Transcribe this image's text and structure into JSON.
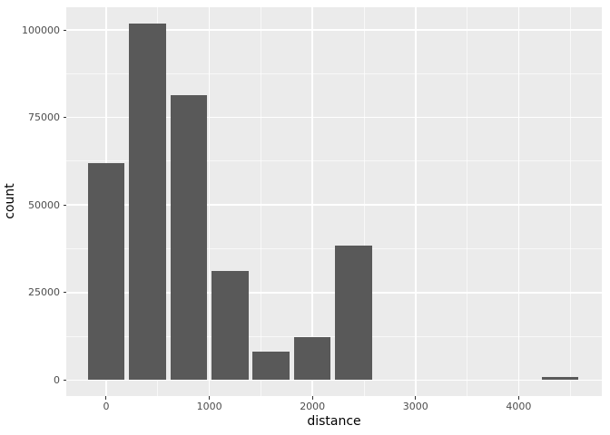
{
  "figure": {
    "background": "#FFFFFF"
  },
  "chart_data": {
    "type": "bar",
    "subtype": "histogram",
    "title": "",
    "xlabel": "distance",
    "ylabel": "count",
    "legend": "none",
    "grid": "on",
    "colors": {
      "bar_fill": "#595959",
      "panel_bg": "#EBEBEB",
      "grid_major": "#FFFFFF",
      "grid_minor": "#FFFFFF",
      "axis_text": "#4D4D4D",
      "axis_title": "#000000",
      "tick_mark": "#333333",
      "outer_bg": "#FFFFFF"
    },
    "x_axis": {
      "label": "distance",
      "tick_values": [
        0,
        1000,
        2000,
        3000,
        4000
      ],
      "tick_labels": [
        "0",
        "1000",
        "2000",
        "3000",
        "4000"
      ],
      "minor_tick_values": [
        500,
        1500,
        2500,
        3500,
        4500
      ],
      "range": [
        -387,
        4806
      ]
    },
    "y_axis": {
      "label": "count",
      "tick_values": [
        0,
        25000,
        50000,
        75000,
        100000
      ],
      "tick_labels": [
        "0",
        "25000",
        "50000",
        "75000",
        "100000"
      ],
      "minor_tick_values": [
        12500,
        37500,
        62500,
        87500
      ],
      "range": [
        -4530,
        106470
      ]
    },
    "bin_width": 357,
    "bins": [
      {
        "center": 0,
        "count": 62000
      },
      {
        "center": 400,
        "count": 101700
      },
      {
        "center": 800,
        "count": 81400
      },
      {
        "center": 1200,
        "count": 31200
      },
      {
        "center": 1600,
        "count": 8200
      },
      {
        "center": 2000,
        "count": 12300
      },
      {
        "center": 2400,
        "count": 38500
      },
      {
        "center": 4400,
        "count": 900
      }
    ]
  }
}
